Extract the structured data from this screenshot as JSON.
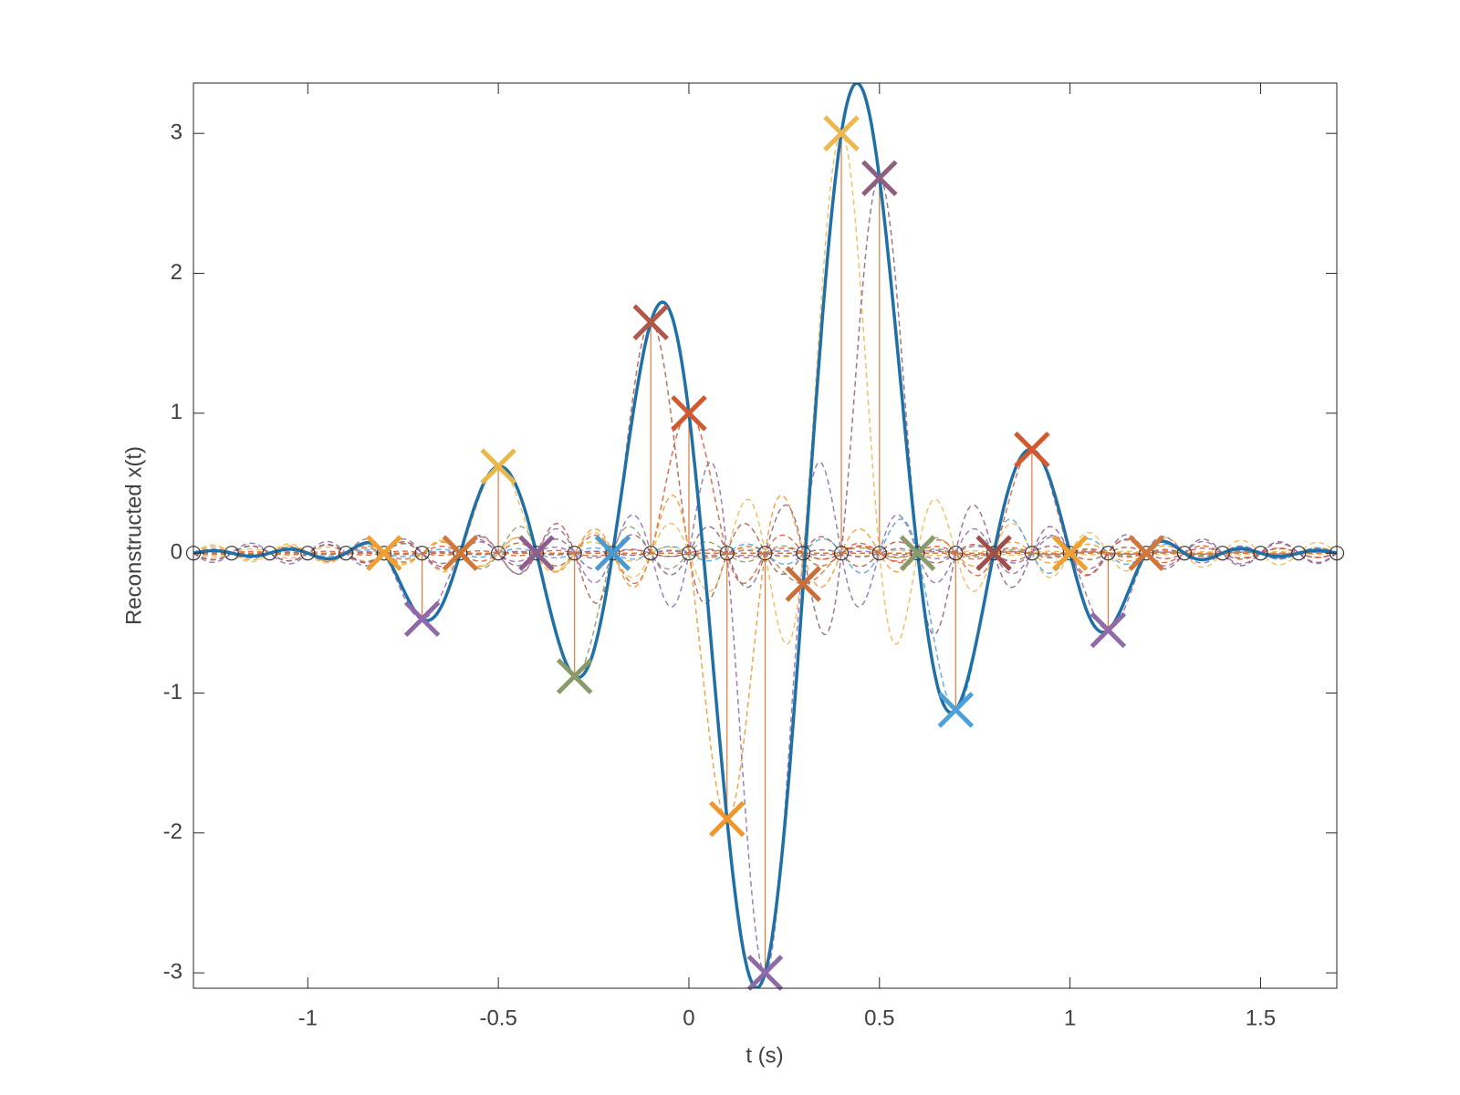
{
  "chart_data": {
    "type": "sinc-reconstruction",
    "xlabel": "t (s)",
    "ylabel": "Reconstructed x(t)",
    "x": [
      -1.3,
      -1.2,
      -1.1,
      -1.0,
      -0.9,
      -0.8,
      -0.7,
      -0.6,
      -0.5,
      -0.4,
      -0.3,
      -0.2,
      -0.1,
      0,
      0.1,
      0.2,
      0.3,
      0.4,
      0.5,
      0.6,
      0.7,
      0.8,
      0.9,
      1.0,
      1.1,
      1.2,
      1.3,
      1.4,
      1.5,
      1.6,
      1.7
    ],
    "values": [
      0,
      0,
      0,
      0,
      0,
      0,
      -0.47,
      0,
      0.62,
      0,
      -0.88,
      0,
      1.65,
      1.0,
      -1.9,
      -3.0,
      -0.22,
      3.0,
      2.68,
      0,
      -1.12,
      0,
      0.74,
      0,
      -0.55,
      0,
      0,
      0,
      0,
      0,
      0
    ],
    "marker_colors": [
      null,
      null,
      null,
      null,
      null,
      "#f0a030",
      "#8e6ba8",
      "#d2773a",
      "#e8b84a",
      "#8e5e8e",
      "#8a9a6a",
      "#4a9acf",
      "#b0584a",
      "#d35a30",
      "#f0962a",
      "#8e6ba8",
      "#c9703a",
      "#edb850",
      "#8e5e80",
      "#8a9a6a",
      "#4ea0d8",
      "#a0504a",
      "#d35a30",
      "#f0a030",
      "#8e6ba8",
      "#d2773a",
      null,
      null,
      null,
      null,
      null
    ],
    "curve_color": "#2070a8",
    "stem_color": "#e07b3a",
    "xlim": [
      -1.3,
      1.7
    ],
    "ylim": [
      -3.11,
      3.36
    ],
    "xticks": [
      -1,
      -0.5,
      0,
      0.5,
      1,
      1.5
    ],
    "yticks": [
      -3,
      -2,
      -1,
      0,
      1,
      2,
      3
    ]
  }
}
